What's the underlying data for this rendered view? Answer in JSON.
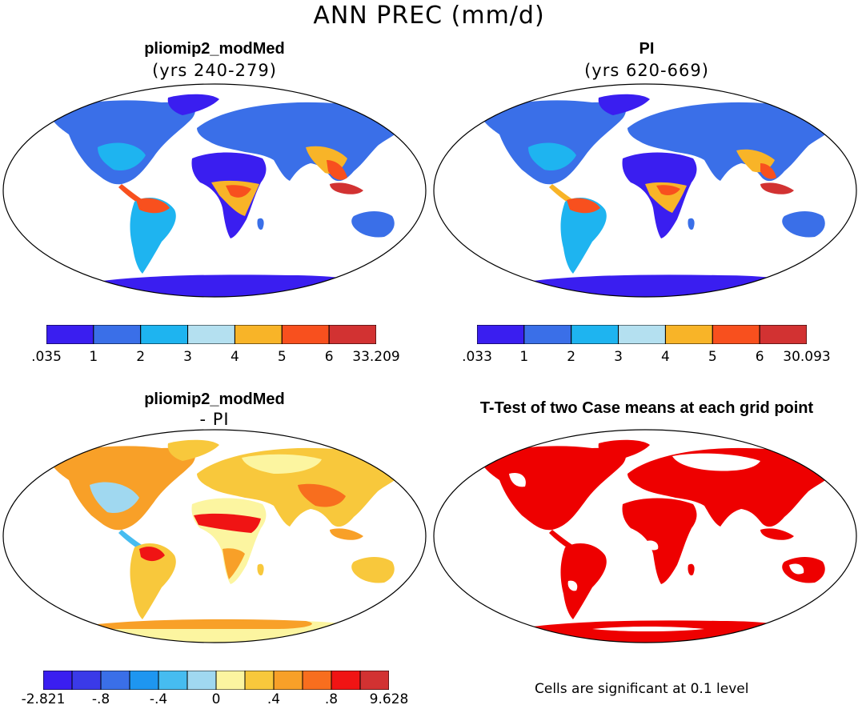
{
  "title": "ANN PREC (mm/d)",
  "panels": {
    "top_left": {
      "title": "pliomip2_modMed",
      "subtitle": "(yrs 240-279)"
    },
    "top_right": {
      "title": "PI",
      "subtitle": "(yrs 620-669)"
    },
    "bottom_left": {
      "title": "pliomip2_modMed",
      "subtitle": "- PI"
    },
    "bottom_right": {
      "title": "T-Test of two Case means at each grid point",
      "subtitle": ""
    }
  },
  "colorbars": {
    "top_left": {
      "labels": [
        ".035",
        "1",
        "2",
        "3",
        "4",
        "5",
        "6",
        "33.209"
      ],
      "colors": [
        "#3a1ef0",
        "#3a6fe8",
        "#1eb4f0",
        "#b4e0f0",
        "#f8b428",
        "#f8501e",
        "#d23232"
      ]
    },
    "top_right": {
      "labels": [
        ".033",
        "1",
        "2",
        "3",
        "4",
        "5",
        "6",
        "30.093"
      ],
      "colors": [
        "#3a1ef0",
        "#3a6fe8",
        "#1eb4f0",
        "#b4e0f0",
        "#f8b428",
        "#f8501e",
        "#d23232"
      ]
    },
    "bottom_left": {
      "labels": [
        "-2.821",
        "-.8",
        "-.4",
        "0",
        ".4",
        ".8",
        "9.628"
      ],
      "colors": [
        "#3a1ef0",
        "#3a3ae8",
        "#3a6fe8",
        "#1e96f0",
        "#46bcf0",
        "#a0d8f0",
        "#fcf5a0",
        "#f8c83c",
        "#f8a028",
        "#f86e1e",
        "#f01414",
        "#d23232"
      ]
    }
  },
  "significance_color": "#ee0000",
  "footnote": "Cells are significant at 0.1 level"
}
